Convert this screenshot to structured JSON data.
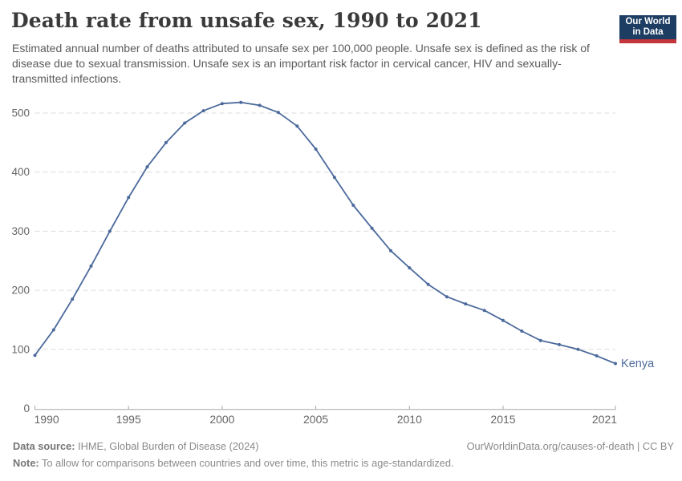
{
  "header": {
    "title": "Death rate from unsafe sex, 1990 to 2021",
    "subtitle": "Estimated annual number of deaths attributed to unsafe sex per 100,000 people. Unsafe sex is defined as the risk of disease due to sexual transmission. Unsafe sex is an important risk factor in cervical cancer, HIV and sexually-transmitted infections.",
    "logo": {
      "line1": "Our World",
      "line2": "in Data"
    }
  },
  "chart_data": {
    "type": "line",
    "title": "Death rate from unsafe sex, 1990 to 2021",
    "x": [
      1990,
      1991,
      1992,
      1993,
      1994,
      1995,
      1996,
      1997,
      1998,
      1999,
      2000,
      2001,
      2002,
      2003,
      2004,
      2005,
      2006,
      2007,
      2008,
      2009,
      2010,
      2011,
      2012,
      2013,
      2014,
      2015,
      2016,
      2017,
      2018,
      2019,
      2020,
      2021
    ],
    "series": [
      {
        "name": "Kenya",
        "color": "#4C6A9C",
        "values": [
          90,
          133,
          185,
          241,
          300,
          357,
          409,
          450,
          483,
          504,
          516,
          518,
          513,
          501,
          478,
          439,
          391,
          344,
          305,
          267,
          238,
          210,
          189,
          177,
          166,
          149,
          131,
          115,
          108,
          100,
          89,
          76
        ]
      }
    ],
    "xlabel": "",
    "ylabel": "",
    "ylim": [
      0,
      525
    ],
    "yticks": [
      0,
      100,
      200,
      300,
      400,
      500
    ],
    "xticks": [
      1990,
      1995,
      2000,
      2005,
      2010,
      2015,
      2021
    ],
    "grid": true,
    "grid_style": "dashed-horizontal",
    "legend_position": "end-of-line-label"
  },
  "footer": {
    "source_label": "Data source:",
    "source_text": " IHME, Global Burden of Disease (2024)",
    "credit": "OurWorldinData.org/causes-of-death | CC BY",
    "note_label": "Note:",
    "note_text": " To allow for comparisons between countries and over time, this metric is age-standardized."
  },
  "colors": {
    "line": "#4C6A9C",
    "grid": "#dcdcdc",
    "axis": "#a8a8a8",
    "tick_label": "#666666",
    "logo_bg": "#1d3d63",
    "logo_underline": "#c5353c"
  }
}
